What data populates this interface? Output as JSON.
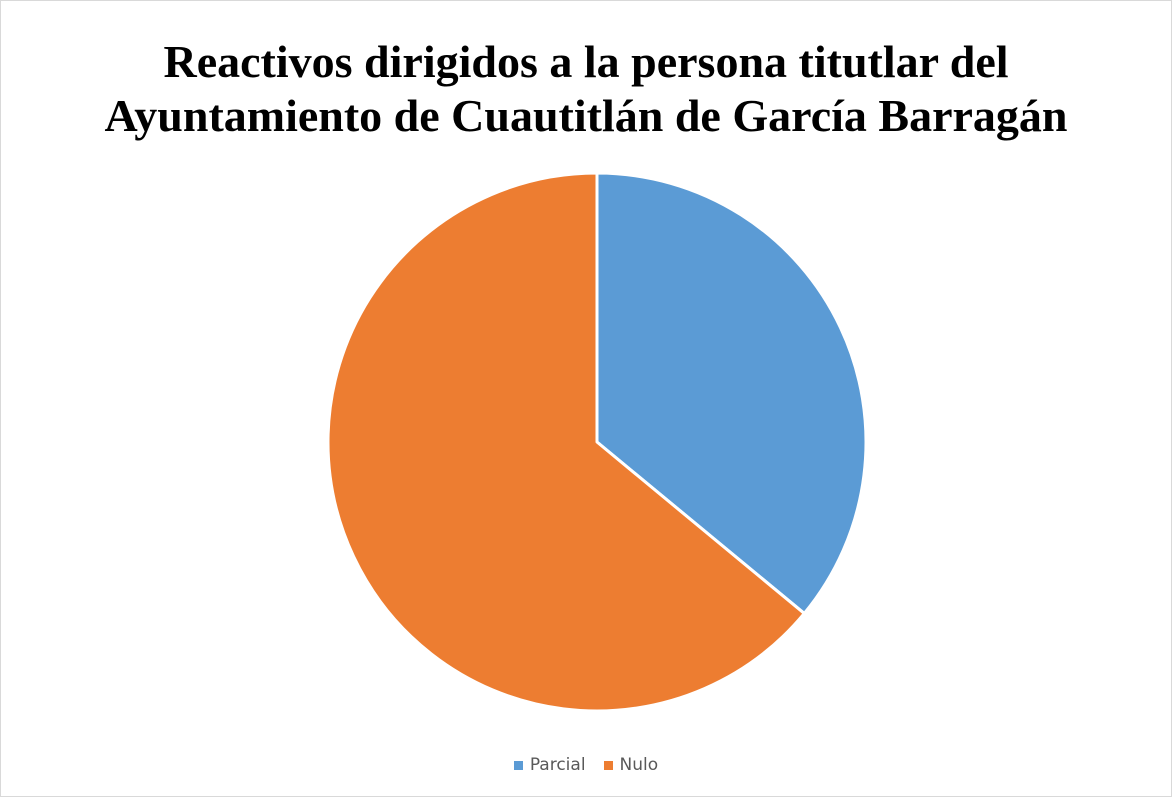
{
  "chart_data": {
    "type": "pie",
    "title_lines": [
      "Reactivos dirigidos a la persona titutlar del",
      "Ayuntamiento de Cuautitlán de García Barragán"
    ],
    "categories": [
      "Parcial",
      "Nulo"
    ],
    "values": [
      36,
      64
    ],
    "colors": [
      "#5B9BD5",
      "#ED7D31"
    ],
    "legend": "bottom"
  }
}
